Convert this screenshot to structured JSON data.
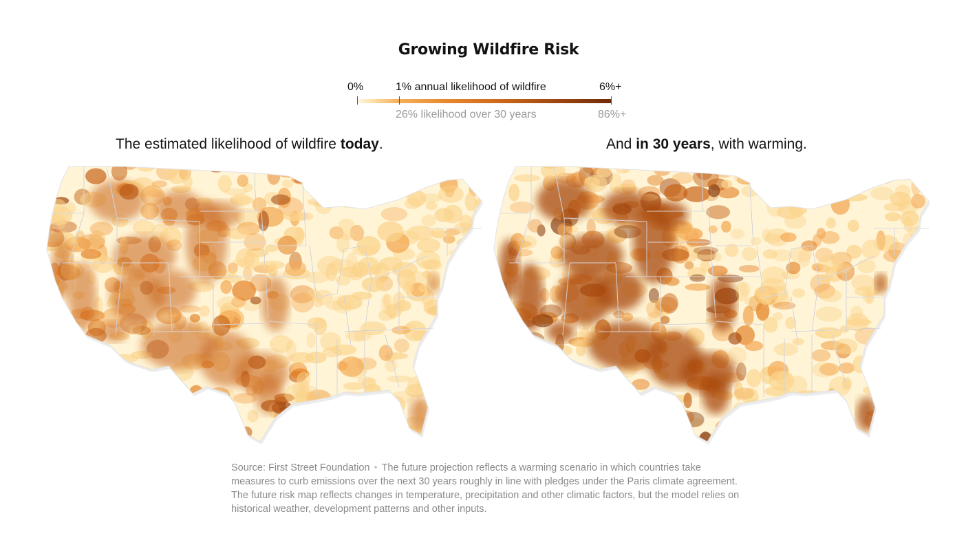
{
  "title": "Growing Wildfire Risk",
  "legend": {
    "min_label": "0%",
    "mid_label": "1% annual likelihood of wildfire",
    "max_label": "6%+",
    "mid_sub_label": "26% likelihood over 30 years",
    "max_sub_label": "86%+",
    "color_low": "#fff8e6",
    "color_high": "#6e2a07"
  },
  "maps": [
    {
      "heading_prefix": "The estimated likelihood of wildfire ",
      "heading_bold": "today",
      "heading_suffix": "."
    },
    {
      "heading_prefix": "And ",
      "heading_bold": "in 30 years",
      "heading_suffix": ", with warming."
    }
  ],
  "source": {
    "label": "Source: First Street Foundation",
    "note": "The future projection reflects a warming scenario in which countries take measures to curb emissions over the next 30 years roughly in line with pledges under the Paris climate agreement. The future risk map reflects changes in temperature, precipitation and other climatic factors, but the model relies on historical weather, development patterns and other inputs."
  }
}
